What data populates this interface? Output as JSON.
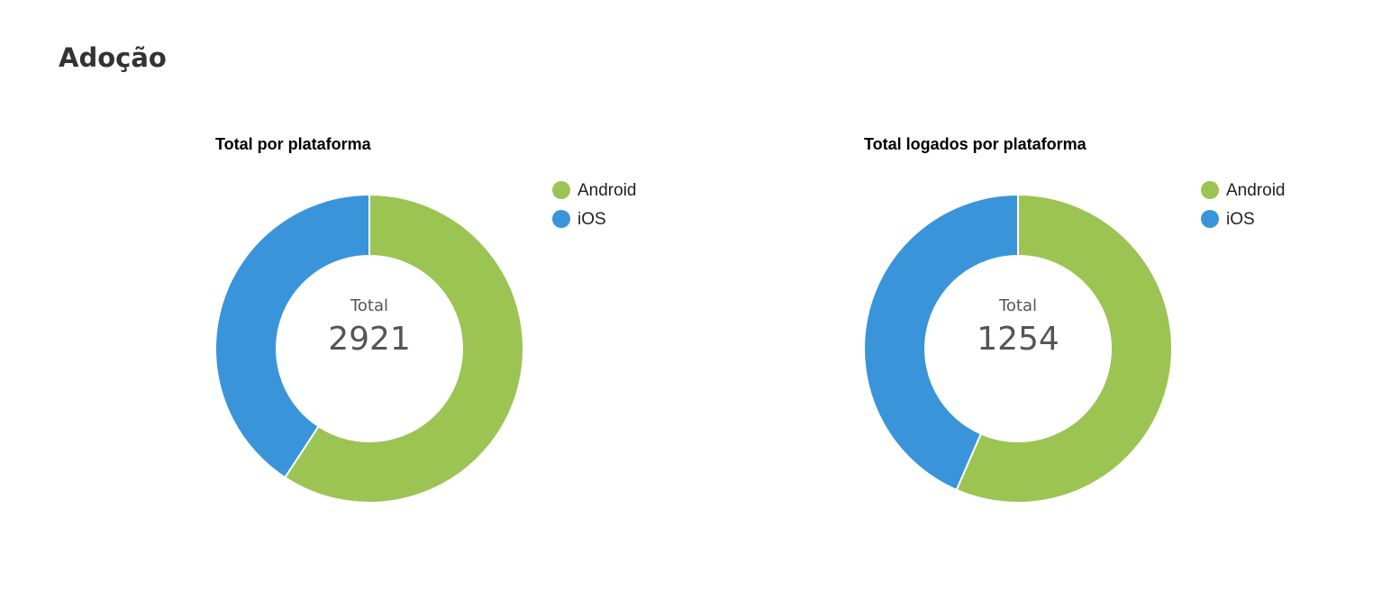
{
  "header": {
    "title": "Adoção"
  },
  "chart_data": [
    {
      "type": "donut",
      "title": "Total por plataforma",
      "categories": [
        "Android",
        "iOS"
      ],
      "values": [
        1730,
        1191
      ],
      "colors": [
        "#9bc453",
        "#3a94d9"
      ],
      "center_label": "Total",
      "total": 2921
    },
    {
      "type": "donut",
      "title": "Total logados por plataforma",
      "categories": [
        "Android",
        "iOS"
      ],
      "values": [
        709,
        545
      ],
      "colors": [
        "#9bc453",
        "#3a94d9"
      ],
      "center_label": "Total",
      "total": 1254
    }
  ]
}
